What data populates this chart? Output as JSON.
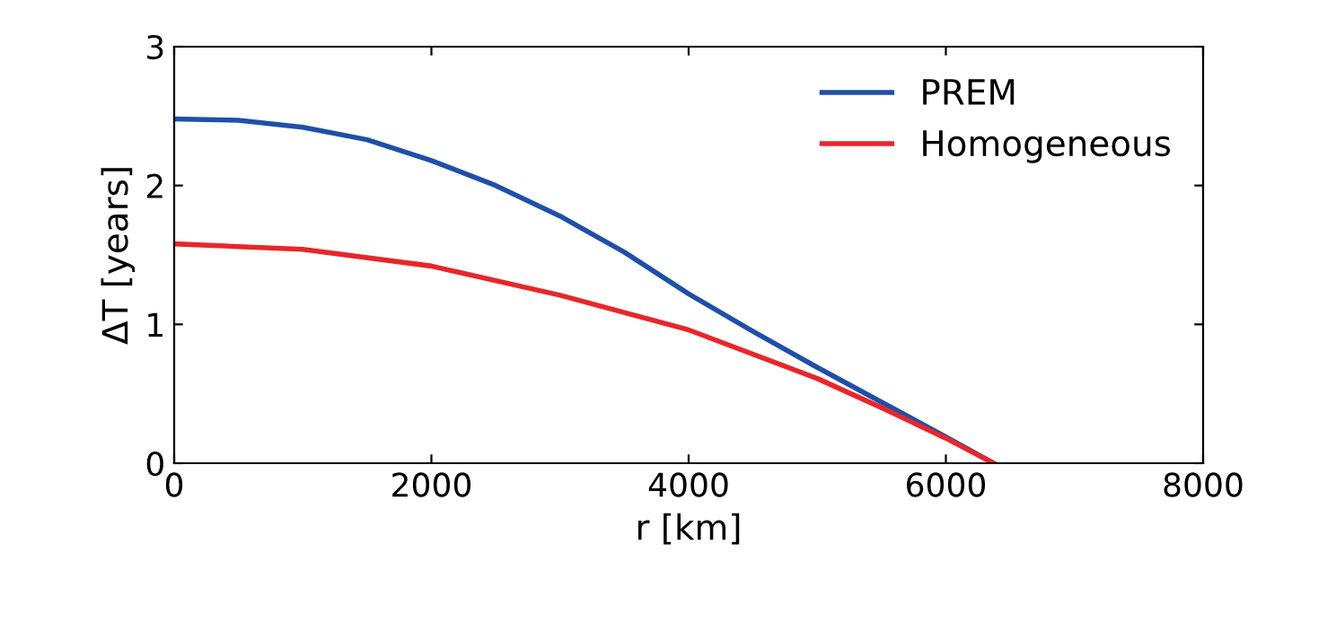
{
  "chart_data": {
    "type": "line",
    "xlabel": "r [km]",
    "ylabel": "ΔT [years]",
    "xlim": [
      0,
      8000
    ],
    "xticks": [
      0,
      2000,
      4000,
      6000,
      8000
    ],
    "ylim": [
      0,
      3
    ],
    "yticks": [
      0,
      1,
      2,
      3
    ],
    "grid": false,
    "legend": "top right",
    "marker": "none",
    "line_style": "solid",
    "series": [
      {
        "name": "PREM",
        "color": "#1f4fa8",
        "x": [
          0,
          500,
          1000,
          1500,
          2000,
          2500,
          3000,
          3500,
          4000,
          4500,
          5000,
          5500,
          6000,
          6371
        ],
        "values": [
          2.48,
          2.47,
          2.42,
          2.33,
          2.18,
          2.0,
          1.78,
          1.52,
          1.22,
          0.95,
          0.69,
          0.44,
          0.19,
          0
        ]
      },
      {
        "name": "Homogeneous",
        "color": "#e8262b",
        "x": [
          0,
          1000,
          2000,
          3000,
          4000,
          5000,
          5500,
          6000,
          6371
        ],
        "values": [
          1.58,
          1.54,
          1.42,
          1.21,
          0.96,
          0.61,
          0.4,
          0.18,
          0
        ]
      }
    ]
  }
}
